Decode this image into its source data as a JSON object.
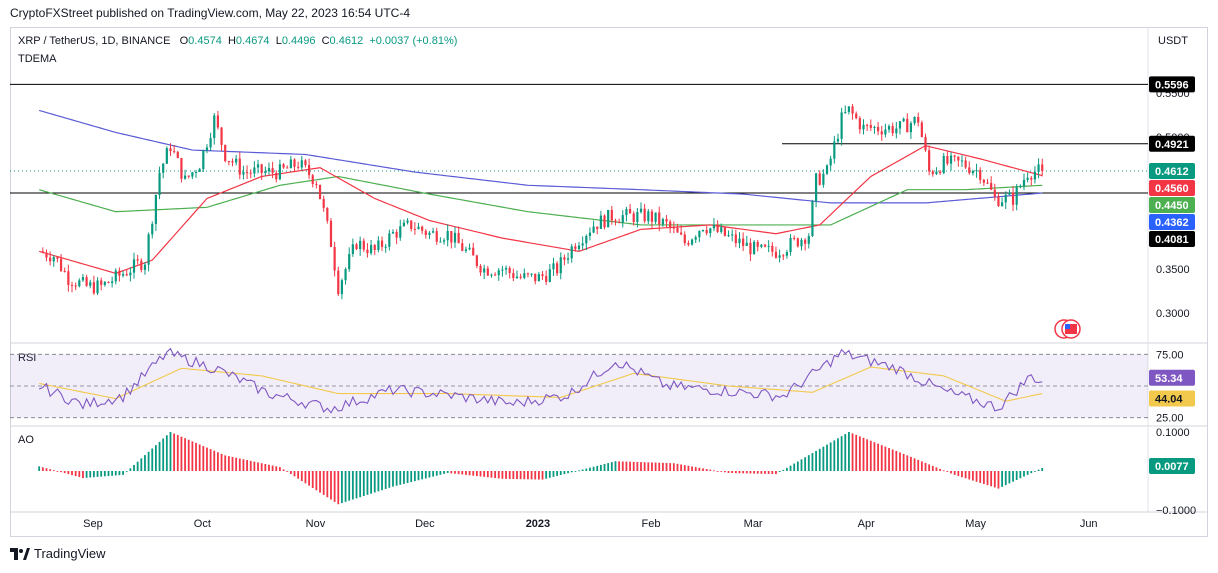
{
  "publisher_line": "CryptoFXStreet published on TradingView.com, May 22, 2023 16:54 UTC-4",
  "header": {
    "symbol": "XRP / TetherUS, 1D, BINANCE",
    "o_label": "O",
    "o": "0.4574",
    "h_label": "H",
    "h": "0.4674",
    "l_label": "L",
    "l": "0.4496",
    "c_label": "C",
    "c": "0.4612",
    "change": "+0.0037 (+0.81%)",
    "indicator": "TDEMA"
  },
  "currency": "USDT",
  "footer": {
    "brand": "TradingView"
  },
  "colors": {
    "up": "#089981",
    "down": "#f23645",
    "ema_fast": "#f23645",
    "ema_mid": "#4caf50",
    "ema_slow": "#5b5bd6",
    "rsi": "#7e57c2",
    "rsi_ma": "#f2c94c",
    "level": "#000000"
  },
  "chart_data": [
    {
      "type": "candlestick",
      "title": "XRP / TetherUS, 1D, BINANCE",
      "x_ticks": [
        "Sep",
        "Oct",
        "Nov",
        "Dec",
        "2023",
        "Feb",
        "Mar",
        "Apr",
        "May",
        "Jun"
      ],
      "y_ticks": [
        "0.5500",
        "0.5000",
        "0.3500",
        "0.3000"
      ],
      "ylim": [
        0.275,
        0.585
      ],
      "horizontal_levels": [
        0.5596,
        0.4921,
        0.4362
      ],
      "price_tags": [
        {
          "label": "0.5596",
          "value": 0.5596,
          "style": "level"
        },
        {
          "label": "0.4921",
          "value": 0.4921,
          "style": "level"
        },
        {
          "label": "0.4612",
          "value": 0.4612,
          "style": "up"
        },
        {
          "label": "0.4560",
          "value": 0.456,
          "style": "ema_fast"
        },
        {
          "label": "0.4450",
          "value": 0.445,
          "style": "ema_mid"
        },
        {
          "label": "0.4362",
          "value": 0.4362,
          "style": "ema_slow"
        },
        {
          "label": "0.4081",
          "value": 0.4081,
          "style": "level"
        }
      ],
      "close_path": [
        [
          "2022-08-20",
          0.37
        ],
        [
          "2022-08-24",
          0.365
        ],
        [
          "2022-08-28",
          0.34
        ],
        [
          "2022-09-02",
          0.33
        ],
        [
          "2022-09-06",
          0.33
        ],
        [
          "2022-09-10",
          0.34
        ],
        [
          "2022-09-14",
          0.35
        ],
        [
          "2022-09-18",
          0.36
        ],
        [
          "2022-09-22",
          0.46
        ],
        [
          "2022-09-25",
          0.49
        ],
        [
          "2022-09-29",
          0.45
        ],
        [
          "2022-10-03",
          0.47
        ],
        [
          "2022-10-07",
          0.52
        ],
        [
          "2022-10-10",
          0.48
        ],
        [
          "2022-10-15",
          0.46
        ],
        [
          "2022-10-20",
          0.46
        ],
        [
          "2022-10-25",
          0.46
        ],
        [
          "2022-10-30",
          0.47
        ],
        [
          "2022-11-04",
          0.45
        ],
        [
          "2022-11-08",
          0.38
        ],
        [
          "2022-11-10",
          0.33
        ],
        [
          "2022-11-15",
          0.38
        ],
        [
          "2022-11-20",
          0.37
        ],
        [
          "2022-11-25",
          0.39
        ],
        [
          "2022-11-30",
          0.4
        ],
        [
          "2022-12-05",
          0.39
        ],
        [
          "2022-12-10",
          0.39
        ],
        [
          "2022-12-15",
          0.37
        ],
        [
          "2022-12-20",
          0.35
        ],
        [
          "2022-12-25",
          0.35
        ],
        [
          "2022-12-30",
          0.34
        ],
        [
          "2023-01-04",
          0.34
        ],
        [
          "2023-01-09",
          0.35
        ],
        [
          "2023-01-14",
          0.38
        ],
        [
          "2023-01-19",
          0.4
        ],
        [
          "2023-01-24",
          0.41
        ],
        [
          "2023-01-29",
          0.41
        ],
        [
          "2023-02-03",
          0.41
        ],
        [
          "2023-02-08",
          0.4
        ],
        [
          "2023-02-13",
          0.38
        ],
        [
          "2023-02-18",
          0.4
        ],
        [
          "2023-02-23",
          0.39
        ],
        [
          "2023-02-28",
          0.38
        ],
        [
          "2023-03-05",
          0.37
        ],
        [
          "2023-03-10",
          0.37
        ],
        [
          "2023-03-15",
          0.38
        ],
        [
          "2023-03-19",
          0.39
        ],
        [
          "2023-03-21",
          0.45
        ],
        [
          "2023-03-24",
          0.46
        ],
        [
          "2023-03-28",
          0.52
        ],
        [
          "2023-03-30",
          0.53
        ],
        [
          "2023-04-03",
          0.51
        ],
        [
          "2023-04-08",
          0.51
        ],
        [
          "2023-04-13",
          0.51
        ],
        [
          "2023-04-18",
          0.52
        ],
        [
          "2023-04-21",
          0.46
        ],
        [
          "2023-04-25",
          0.47
        ],
        [
          "2023-04-30",
          0.47
        ],
        [
          "2023-05-05",
          0.46
        ],
        [
          "2023-05-09",
          0.43
        ],
        [
          "2023-05-14",
          0.43
        ],
        [
          "2023-05-18",
          0.46
        ],
        [
          "2023-05-22",
          0.4612
        ]
      ],
      "ema_fast": [
        [
          "2022-08-20",
          0.37
        ],
        [
          "2022-09-10",
          0.345
        ],
        [
          "2022-09-20",
          0.36
        ],
        [
          "2022-10-05",
          0.43
        ],
        [
          "2022-10-20",
          0.455
        ],
        [
          "2022-11-05",
          0.465
        ],
        [
          "2022-11-20",
          0.43
        ],
        [
          "2022-12-05",
          0.405
        ],
        [
          "2022-12-25",
          0.385
        ],
        [
          "2023-01-15",
          0.37
        ],
        [
          "2023-02-01",
          0.395
        ],
        [
          "2023-02-20",
          0.4
        ],
        [
          "2023-03-10",
          0.39
        ],
        [
          "2023-03-22",
          0.4
        ],
        [
          "2023-04-05",
          0.455
        ],
        [
          "2023-04-20",
          0.49
        ],
        [
          "2023-05-05",
          0.475
        ],
        [
          "2023-05-22",
          0.456
        ]
      ],
      "ema_mid": [
        [
          "2022-08-20",
          0.44
        ],
        [
          "2022-09-10",
          0.415
        ],
        [
          "2022-10-05",
          0.42
        ],
        [
          "2022-10-25",
          0.445
        ],
        [
          "2022-11-10",
          0.455
        ],
        [
          "2022-12-05",
          0.435
        ],
        [
          "2023-01-01",
          0.415
        ],
        [
          "2023-02-01",
          0.4
        ],
        [
          "2023-03-01",
          0.4
        ],
        [
          "2023-03-25",
          0.4
        ],
        [
          "2023-04-15",
          0.44
        ],
        [
          "2023-05-01",
          0.44
        ],
        [
          "2023-05-22",
          0.445
        ]
      ],
      "ema_slow": [
        [
          "2022-08-20",
          0.53
        ],
        [
          "2022-09-10",
          0.505
        ],
        [
          "2022-10-01",
          0.485
        ],
        [
          "2022-11-01",
          0.48
        ],
        [
          "2022-12-01",
          0.46
        ],
        [
          "2023-01-01",
          0.445
        ],
        [
          "2023-02-01",
          0.44
        ],
        [
          "2023-03-01",
          0.435
        ],
        [
          "2023-03-25",
          0.425
        ],
        [
          "2023-04-20",
          0.425
        ],
        [
          "2023-05-22",
          0.4362
        ]
      ]
    },
    {
      "type": "line",
      "title": "RSI",
      "y_ticks": [
        "75.00",
        "25.00"
      ],
      "ylim": [
        20,
        80
      ],
      "value_tags": [
        {
          "label": "53.34",
          "value": 53.34,
          "style": "rsi"
        },
        {
          "label": "44.04",
          "value": 44.04,
          "style": "rsi_ma"
        }
      ],
      "series": [
        {
          "name": "RSI",
          "points": [
            [
              "2022-08-20",
              50
            ],
            [
              "2022-09-01",
              35
            ],
            [
              "2022-09-12",
              42
            ],
            [
              "2022-09-24",
              76
            ],
            [
              "2022-10-08",
              63
            ],
            [
              "2022-10-22",
              44
            ],
            [
              "2022-11-08",
              32
            ],
            [
              "2022-11-25",
              47
            ],
            [
              "2022-12-10",
              43
            ],
            [
              "2022-12-28",
              36
            ],
            [
              "2023-01-12",
              43
            ],
            [
              "2023-01-25",
              70
            ],
            [
              "2023-02-08",
              50
            ],
            [
              "2023-02-25",
              46
            ],
            [
              "2023-03-12",
              42
            ],
            [
              "2023-03-28",
              76
            ],
            [
              "2023-04-12",
              64
            ],
            [
              "2023-04-25",
              46
            ],
            [
              "2023-05-10",
              33
            ],
            [
              "2023-05-19",
              58
            ],
            [
              "2023-05-22",
              53.34
            ]
          ]
        },
        {
          "name": "RSI-based MA",
          "points": [
            [
              "2022-08-20",
              52
            ],
            [
              "2022-09-10",
              40
            ],
            [
              "2022-09-28",
              64
            ],
            [
              "2022-10-20",
              58
            ],
            [
              "2022-11-10",
              44
            ],
            [
              "2022-12-10",
              44
            ],
            [
              "2023-01-10",
              41
            ],
            [
              "2023-01-30",
              60
            ],
            [
              "2023-02-25",
              50
            ],
            [
              "2023-03-20",
              45
            ],
            [
              "2023-04-05",
              65
            ],
            [
              "2023-04-25",
              58
            ],
            [
              "2023-05-12",
              38
            ],
            [
              "2023-05-22",
              44.04
            ]
          ]
        }
      ]
    },
    {
      "type": "bar",
      "title": "AO",
      "y_ticks": [
        "0.1000",
        "−0.1000"
      ],
      "ylim": [
        -0.105,
        0.105
      ],
      "value_tags": [
        {
          "label": "0.0077",
          "value": 0.0077,
          "style": "up"
        }
      ],
      "series": [
        {
          "name": "AO",
          "points": [
            [
              "2022-08-20",
              0.012
            ],
            [
              "2022-09-01",
              -0.018
            ],
            [
              "2022-09-12",
              -0.01
            ],
            [
              "2022-09-25",
              0.1
            ],
            [
              "2022-10-10",
              0.04
            ],
            [
              "2022-10-25",
              0.01
            ],
            [
              "2022-11-10",
              -0.085
            ],
            [
              "2022-11-25",
              -0.04
            ],
            [
              "2022-12-10",
              -0.005
            ],
            [
              "2022-12-25",
              -0.02
            ],
            [
              "2023-01-05",
              -0.022
            ],
            [
              "2023-01-25",
              0.025
            ],
            [
              "2023-02-10",
              0.02
            ],
            [
              "2023-02-25",
              -0.005
            ],
            [
              "2023-03-10",
              -0.008
            ],
            [
              "2023-03-30",
              0.1
            ],
            [
              "2023-04-15",
              0.04
            ],
            [
              "2023-04-28",
              -0.01
            ],
            [
              "2023-05-10",
              -0.045
            ],
            [
              "2023-05-22",
              0.0077
            ]
          ]
        }
      ]
    }
  ]
}
